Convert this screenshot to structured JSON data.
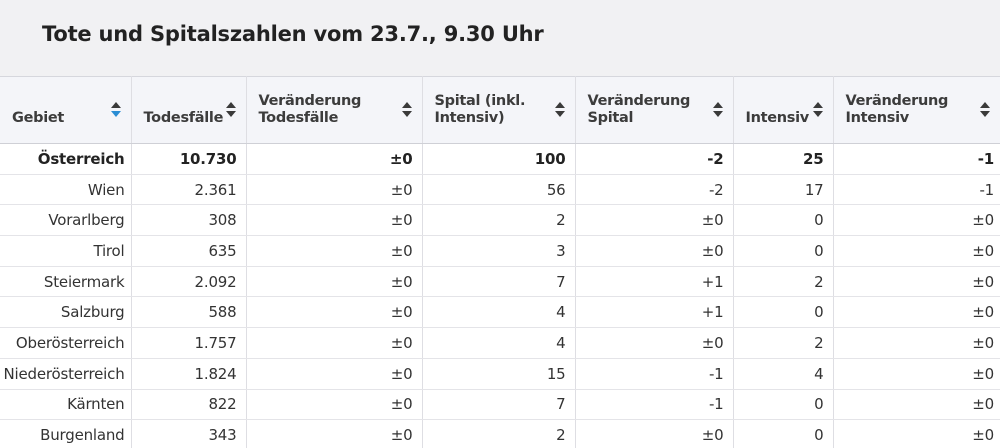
{
  "title": "Tote und Spitalszahlen vom 23.7., 9.30 Uhr",
  "columns": [
    {
      "label": "Gebiet",
      "sort_active": true
    },
    {
      "label": "Todesfälle",
      "sort_active": false
    },
    {
      "label": "Veränderung Todesfälle",
      "sort_active": false
    },
    {
      "label": "Spital (inkl. Intensiv)",
      "sort_active": false
    },
    {
      "label": "Veränderung Spital",
      "sort_active": false
    },
    {
      "label": "Intensiv",
      "sort_active": false
    },
    {
      "label": "Veränderung Intensiv",
      "sort_active": false
    }
  ],
  "rows": [
    {
      "gebiet": "Österreich",
      "todesfaelle": "10.730",
      "veraenderung_todesfaelle": "±0",
      "spital": "100",
      "veraenderung_spital": "-2",
      "intensiv": "25",
      "veraenderung_intensiv": "-1"
    },
    {
      "gebiet": "Wien",
      "todesfaelle": "2.361",
      "veraenderung_todesfaelle": "±0",
      "spital": "56",
      "veraenderung_spital": "-2",
      "intensiv": "17",
      "veraenderung_intensiv": "-1"
    },
    {
      "gebiet": "Vorarlberg",
      "todesfaelle": "308",
      "veraenderung_todesfaelle": "±0",
      "spital": "2",
      "veraenderung_spital": "±0",
      "intensiv": "0",
      "veraenderung_intensiv": "±0"
    },
    {
      "gebiet": "Tirol",
      "todesfaelle": "635",
      "veraenderung_todesfaelle": "±0",
      "spital": "3",
      "veraenderung_spital": "±0",
      "intensiv": "0",
      "veraenderung_intensiv": "±0"
    },
    {
      "gebiet": "Steiermark",
      "todesfaelle": "2.092",
      "veraenderung_todesfaelle": "±0",
      "spital": "7",
      "veraenderung_spital": "+1",
      "intensiv": "2",
      "veraenderung_intensiv": "±0"
    },
    {
      "gebiet": "Salzburg",
      "todesfaelle": "588",
      "veraenderung_todesfaelle": "±0",
      "spital": "4",
      "veraenderung_spital": "+1",
      "intensiv": "0",
      "veraenderung_intensiv": "±0"
    },
    {
      "gebiet": "Oberösterreich",
      "todesfaelle": "1.757",
      "veraenderung_todesfaelle": "±0",
      "spital": "4",
      "veraenderung_spital": "±0",
      "intensiv": "2",
      "veraenderung_intensiv": "±0"
    },
    {
      "gebiet": "Niederösterreich",
      "todesfaelle": "1.824",
      "veraenderung_todesfaelle": "±0",
      "spital": "15",
      "veraenderung_spital": "-1",
      "intensiv": "4",
      "veraenderung_intensiv": "±0"
    },
    {
      "gebiet": "Kärnten",
      "todesfaelle": "822",
      "veraenderung_todesfaelle": "±0",
      "spital": "7",
      "veraenderung_spital": "-1",
      "intensiv": "0",
      "veraenderung_intensiv": "±0"
    },
    {
      "gebiet": "Burgenland",
      "todesfaelle": "343",
      "veraenderung_todesfaelle": "±0",
      "spital": "2",
      "veraenderung_spital": "±0",
      "intensiv": "0",
      "veraenderung_intensiv": "±0"
    }
  ],
  "colors": {
    "header_bg": "#f4f5f9",
    "title_bg": "#f1f1f3",
    "sort_active": "#2a8dd4",
    "sort_inactive": "#3a3a3a"
  }
}
